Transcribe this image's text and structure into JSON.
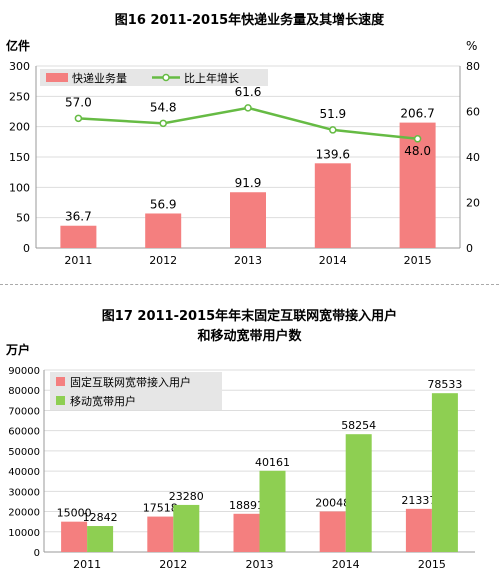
{
  "colors": {
    "bar_red": "#f47f7f",
    "line_green": "#66bb44",
    "bar_green": "#8ecf52",
    "grid": "#dddddd",
    "axis": "#999999",
    "legend_bg": "#e6e6e6"
  },
  "chart_data": [
    {
      "type": "bar",
      "title": "图16    2011-2015年快递业务量及其增长速度",
      "ylabel_left": "亿件",
      "ylabel_right": "%",
      "categories": [
        "2011",
        "2012",
        "2013",
        "2014",
        "2015"
      ],
      "ylim_left": [
        0,
        300
      ],
      "yticks_left": [
        "0",
        "50",
        "100",
        "150",
        "200",
        "250",
        "300"
      ],
      "ylim_right": [
        0,
        80
      ],
      "yticks_right": [
        "0",
        "20",
        "40",
        "60",
        "80"
      ],
      "series": [
        {
          "name": "快递业务量",
          "kind": "bar",
          "axis": "left",
          "color": "#f47f7f",
          "values": [
            36.7,
            56.9,
            91.9,
            139.6,
            206.7
          ],
          "labels": [
            "36.7",
            "56.9",
            "91.9",
            "139.6",
            "206.7"
          ]
        },
        {
          "name": "比上年增长",
          "kind": "line",
          "axis": "right",
          "color": "#66bb44",
          "values": [
            57.0,
            54.8,
            61.6,
            51.9,
            48.0
          ],
          "labels": [
            "57.0",
            "54.8",
            "61.6",
            "51.9",
            "48.0"
          ]
        }
      ],
      "grid": true,
      "legend": "top-left"
    },
    {
      "type": "bar",
      "title": [
        "图17    2011-2015年年末固定互联网宽带接入用户",
        "和移动宽带用户数"
      ],
      "ylabel": "万户",
      "categories": [
        "2011",
        "2012",
        "2013",
        "2014",
        "2015"
      ],
      "ylim": [
        0,
        90000
      ],
      "yticks": [
        "0",
        "10000",
        "20000",
        "30000",
        "40000",
        "50000",
        "60000",
        "70000",
        "80000",
        "90000"
      ],
      "series": [
        {
          "name": "固定互联网宽带接入用户",
          "color": "#f47f7f",
          "values": [
            15000,
            17518,
            18891,
            20048,
            21337
          ],
          "labels": [
            "15000",
            "17518",
            "18891",
            "20048",
            "21337"
          ]
        },
        {
          "name": "移动宽带用户",
          "color": "#8ecf52",
          "values": [
            12842,
            23280,
            40161,
            58254,
            78533
          ],
          "labels": [
            "12842",
            "23280",
            "40161",
            "58254",
            "78533"
          ]
        }
      ],
      "grid": true,
      "legend": "top-left"
    }
  ]
}
